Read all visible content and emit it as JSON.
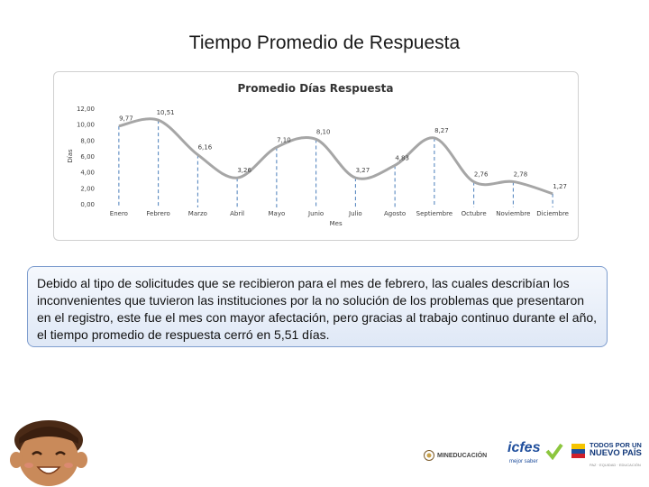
{
  "slide": {
    "title": "Tiempo Promedio de Respuesta",
    "body_text": "Debido al tipo de solicitudes que se recibieron para el mes de febrero, las cuales describían los inconvenientes que tuvieron las instituciones por la no solución de los problemas que presentaron en el registro, este fue el mes con mayor afectación, pero gracias al trabajo continuo durante el año, el tiempo promedio de respuesta cerró en 5,51 días."
  },
  "chart_data": {
    "type": "line",
    "title": "Promedio Días Respuesta",
    "xlabel": "Mes",
    "ylabel": "Días",
    "categories": [
      "Enero",
      "Febrero",
      "Marzo",
      "Abril",
      "Mayo",
      "Junio",
      "Julio",
      "Agosto",
      "Septiembre",
      "Octubre",
      "Noviembre",
      "Diciembre"
    ],
    "values": [
      9.77,
      10.51,
      6.16,
      3.26,
      7.1,
      8.1,
      3.27,
      4.83,
      8.27,
      2.76,
      2.78,
      1.27
    ],
    "data_labels": [
      "9,77",
      "10,51",
      "6,16",
      "3,26",
      "7,10",
      "8,10",
      "3,27",
      "4,83",
      "8,27",
      "2,76",
      "2,78",
      "1,27"
    ],
    "yticks": [
      "0,00",
      "2,00",
      "4,00",
      "6,00",
      "8,00",
      "10,00",
      "12,00"
    ],
    "ylim": [
      0,
      12
    ],
    "grid": false,
    "legend": "none",
    "colors": {
      "line": "#a6a6a6",
      "drop_lines": "#4a7ebb",
      "text": "#404040"
    }
  },
  "logos": {
    "mineducacion": "MINEDUCACIÓN",
    "icfes": "icfes",
    "icfes_tagline": "mejor saber",
    "tppnp_line1": "TODOS POR UN",
    "tppnp_line2": "NUEVO PAÍS",
    "tppnp_tagline": "PAZ · EQUIDAD · EDUCACIÓN"
  }
}
